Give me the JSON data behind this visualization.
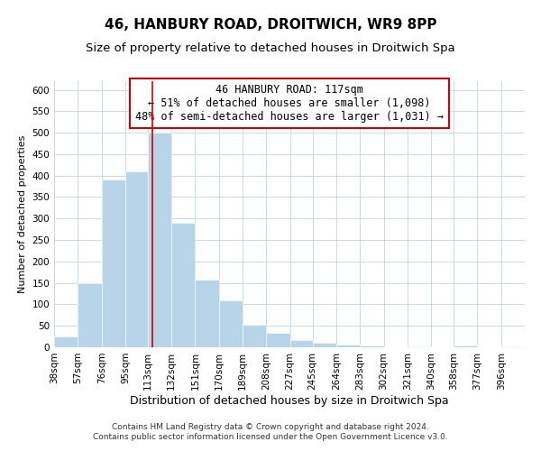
{
  "title": "46, HANBURY ROAD, DROITWICH, WR9 8PP",
  "subtitle": "Size of property relative to detached houses in Droitwich Spa",
  "xlabel": "Distribution of detached houses by size in Droitwich Spa",
  "ylabel": "Number of detached properties",
  "bar_edges": [
    38,
    57,
    76,
    95,
    113,
    132,
    151,
    170,
    189,
    208,
    227,
    245,
    264,
    283,
    302,
    321,
    340,
    358,
    377,
    396,
    415
  ],
  "bar_heights": [
    25,
    150,
    390,
    410,
    500,
    290,
    158,
    110,
    53,
    33,
    16,
    10,
    7,
    4,
    0,
    3,
    0,
    4,
    0,
    2
  ],
  "bar_color": "#b8d4e8",
  "vline_x": 117,
  "vline_color": "#cc0000",
  "ylim": [
    0,
    620
  ],
  "xlim": [
    38,
    415
  ],
  "annotation_title": "46 HANBURY ROAD: 117sqm",
  "annotation_line1": "← 51% of detached houses are smaller (1,098)",
  "annotation_line2": "48% of semi-detached houses are larger (1,031) →",
  "footnote1": "Contains HM Land Registry data © Crown copyright and database right 2024.",
  "footnote2": "Contains public sector information licensed under the Open Government Licence v3.0.",
  "title_fontsize": 11,
  "subtitle_fontsize": 9.5,
  "xlabel_fontsize": 9,
  "ylabel_fontsize": 8,
  "tick_fontsize": 7.5,
  "annotation_fontsize": 8.5,
  "footnote_fontsize": 6.5,
  "background_color": "#ffffff",
  "grid_color": "#c8d8e8"
}
